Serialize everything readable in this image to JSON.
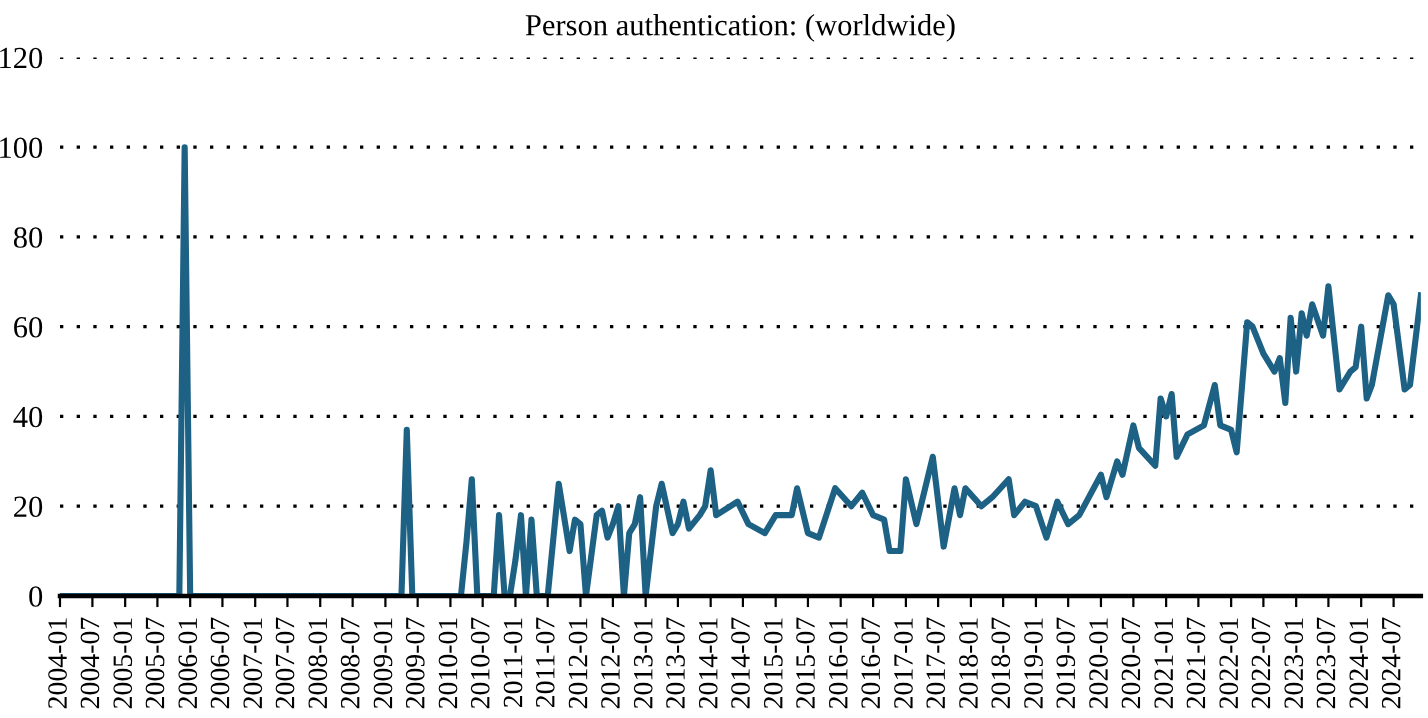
{
  "chart_data": {
    "type": "line",
    "title": "Person authentication: (worldwide)",
    "series": [
      {
        "color": "#1d6184",
        "x": [
          "2004-01",
          "2005-11",
          "2005-12",
          "2006-01",
          "2009-04",
          "2009-05",
          "2009-06",
          "2010-03",
          "2010-04",
          "2010-05",
          "2010-06",
          "2010-09",
          "2010-10",
          "2010-11",
          "2010-12",
          "2011-01",
          "2011-02",
          "2011-03",
          "2011-04",
          "2011-05",
          "2011-07",
          "2011-09",
          "2011-11",
          "2011-12",
          "2012-01",
          "2012-02",
          "2012-04",
          "2012-05",
          "2012-06",
          "2012-07",
          "2012-08",
          "2012-09",
          "2012-10",
          "2012-11",
          "2012-12",
          "2013-01",
          "2013-03",
          "2013-04",
          "2013-06",
          "2013-07",
          "2013-08",
          "2013-09",
          "2013-11",
          "2013-12",
          "2014-01",
          "2014-02",
          "2014-06",
          "2014-08",
          "2014-11",
          "2015-01",
          "2015-04",
          "2015-05",
          "2015-07",
          "2015-09",
          "2015-12",
          "2016-03",
          "2016-05",
          "2016-07",
          "2016-09",
          "2016-10",
          "2016-12",
          "2017-01",
          "2017-03",
          "2017-06",
          "2017-08",
          "2017-10",
          "2017-11",
          "2017-12",
          "2018-03",
          "2018-05",
          "2018-08",
          "2018-09",
          "2018-11",
          "2019-01",
          "2019-03",
          "2019-05",
          "2019-07",
          "2019-09",
          "2020-01",
          "2020-02",
          "2020-04",
          "2020-05",
          "2020-07",
          "2020-08",
          "2020-11",
          "2020-12",
          "2021-01",
          "2021-02",
          "2021-03",
          "2021-05",
          "2021-08",
          "2021-10",
          "2021-11",
          "2022-01",
          "2022-02",
          "2022-04",
          "2022-05",
          "2022-07",
          "2022-09",
          "2022-10",
          "2022-11",
          "2022-12",
          "2023-01",
          "2023-02",
          "2023-03",
          "2023-04",
          "2023-06",
          "2023-07",
          "2023-09",
          "2023-11",
          "2023-12",
          "2024-01",
          "2024-02",
          "2024-03",
          "2024-06",
          "2024-07",
          "2024-09",
          "2024-10",
          "2024-12"
        ],
        "values": [
          0,
          0,
          100,
          0,
          0,
          37,
          0,
          0,
          12,
          26,
          0,
          0,
          18,
          0,
          0,
          8,
          18,
          0,
          17,
          0,
          0,
          25,
          10,
          17,
          16,
          0,
          18,
          19,
          13,
          16,
          20,
          0,
          14,
          16,
          22,
          0,
          20,
          25,
          14,
          16,
          21,
          15,
          18,
          20,
          28,
          18,
          21,
          16,
          14,
          18,
          18,
          24,
          14,
          13,
          24,
          20,
          23,
          18,
          17,
          10,
          10,
          26,
          16,
          31,
          11,
          24,
          18,
          24,
          20,
          22,
          26,
          18,
          21,
          20,
          13,
          21,
          16,
          18,
          27,
          22,
          30,
          27,
          38,
          33,
          29,
          44,
          40,
          45,
          31,
          36,
          38,
          47,
          38,
          37,
          32,
          61,
          60,
          54,
          50,
          53,
          43,
          62,
          50,
          63,
          58,
          65,
          58,
          69,
          46,
          50,
          51,
          60,
          44,
          47,
          67,
          65,
          46,
          47,
          67
        ]
      }
    ],
    "xlim": [
      "2004-01",
      "2024-12"
    ],
    "xticks": [
      "2004-01",
      "2004-07",
      "2005-01",
      "2005-07",
      "2006-01",
      "2006-07",
      "2007-01",
      "2007-07",
      "2008-01",
      "2008-07",
      "2009-01",
      "2009-07",
      "2010-01",
      "2010-07",
      "2011-01",
      "2011-07",
      "2012-01",
      "2012-07",
      "2013-01",
      "2013-07",
      "2014-01",
      "2014-07",
      "2015-01",
      "2015-07",
      "2016-01",
      "2016-07",
      "2017-01",
      "2017-07",
      "2018-01",
      "2018-07",
      "2019-01",
      "2019-07",
      "2020-01",
      "2020-07",
      "2021-01",
      "2021-07",
      "2022-01",
      "2022-07",
      "2023-01",
      "2023-07",
      "2024-01",
      "2024-07"
    ],
    "ylim": [
      0,
      120
    ],
    "yticks": [
      0,
      20,
      40,
      60,
      80,
      100,
      120
    ],
    "grid": "y",
    "line_style": "solid",
    "legend": false
  }
}
